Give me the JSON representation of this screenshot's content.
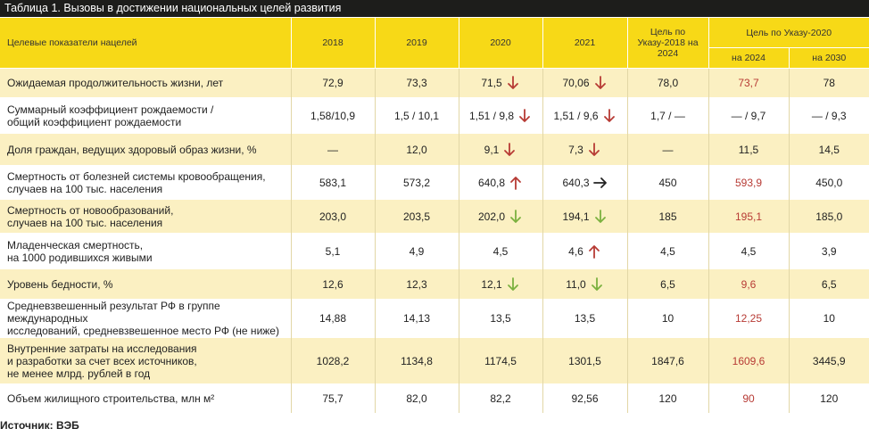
{
  "title": "Таблица 1. Вызовы в достижении национальных целей развития",
  "headers": {
    "indicators": "Целевые показатели нацелей",
    "y2018": "2018",
    "y2019": "2019",
    "y2020": "2020",
    "y2021": "2021",
    "target2018": "Цель по Указу-2018 на 2024",
    "target2020": "Цель по Указу-2020",
    "to2024": "на 2024",
    "to2030": "на 2030"
  },
  "arrow_colors": {
    "red": "#b73b35",
    "green": "#7bb13f",
    "black": "#222222"
  },
  "rows": [
    {
      "label": [
        "Ожидаемая продолжительность жизни, лет"
      ],
      "cells": [
        {
          "v": "72,9"
        },
        {
          "v": "73,3"
        },
        {
          "v": "71,5",
          "arrow": "down-red"
        },
        {
          "v": "70,06",
          "arrow": "down-red"
        },
        {
          "v": "78,0"
        },
        {
          "v": "73,7",
          "red": true
        },
        {
          "v": "78"
        }
      ]
    },
    {
      "label": [
        "Суммарный коэффициент рождаемости /",
        "общий коэффициент рождаемости"
      ],
      "cells": [
        {
          "v": "1,58/10,9"
        },
        {
          "v": "1,5 / 10,1"
        },
        {
          "v": "1,51 / 9,8",
          "arrow": "down-red"
        },
        {
          "v": "1,51 / 9,6",
          "arrow": "down-red"
        },
        {
          "v": "1,7 / —"
        },
        {
          "v": "— / 9,7"
        },
        {
          "v": "— / 9,3"
        }
      ]
    },
    {
      "label": [
        "Доля граждан, ведущих здоровый образ жизни, %"
      ],
      "cells": [
        {
          "v": "—"
        },
        {
          "v": "12,0"
        },
        {
          "v": "9,1",
          "arrow": "down-red"
        },
        {
          "v": "7,3",
          "arrow": "down-red"
        },
        {
          "v": "—"
        },
        {
          "v": "11,5"
        },
        {
          "v": "14,5"
        }
      ]
    },
    {
      "label": [
        "Смертность от болезней системы кровообращения,",
        "случаев на 100 тыс. населения"
      ],
      "cells": [
        {
          "v": "583,1"
        },
        {
          "v": "573,2"
        },
        {
          "v": "640,8",
          "arrow": "up-red"
        },
        {
          "v": "640,3",
          "arrow": "right-black"
        },
        {
          "v": "450"
        },
        {
          "v": "593,9",
          "red": true
        },
        {
          "v": "450,0"
        }
      ]
    },
    {
      "label": [
        "Смертность от новообразований,",
        "случаев на 100 тыс. населения"
      ],
      "cells": [
        {
          "v": "203,0"
        },
        {
          "v": "203,5"
        },
        {
          "v": "202,0",
          "arrow": "down-green"
        },
        {
          "v": "194,1",
          "arrow": "down-green"
        },
        {
          "v": "185"
        },
        {
          "v": "195,1",
          "red": true
        },
        {
          "v": "185,0"
        }
      ]
    },
    {
      "label": [
        "Младенческая смертность,",
        "на 1000 родившихся живыми"
      ],
      "cells": [
        {
          "v": "5,1"
        },
        {
          "v": "4,9"
        },
        {
          "v": "4,5"
        },
        {
          "v": "4,6",
          "arrow": "up-red"
        },
        {
          "v": "4,5"
        },
        {
          "v": "4,5"
        },
        {
          "v": "3,9"
        }
      ]
    },
    {
      "label": [
        "Уровень бедности, %"
      ],
      "cells": [
        {
          "v": "12,6"
        },
        {
          "v": "12,3"
        },
        {
          "v": "12,1",
          "arrow": "down-green"
        },
        {
          "v": "11,0",
          "arrow": "down-green"
        },
        {
          "v": "6,5"
        },
        {
          "v": "9,6",
          "red": true
        },
        {
          "v": "6,5"
        }
      ]
    },
    {
      "label": [
        "Средневзвешенный результат РФ в группе международных",
        "исследований, средневзвешенное место РФ (не ниже)"
      ],
      "cells": [
        {
          "v": "14,88"
        },
        {
          "v": "14,13"
        },
        {
          "v": "13,5"
        },
        {
          "v": "13,5"
        },
        {
          "v": "10"
        },
        {
          "v": "12,25",
          "red": true
        },
        {
          "v": "10"
        }
      ]
    },
    {
      "label": [
        "Внутренние затраты на исследования",
        "и разработки за счет всех источников,",
        "не менее млрд. рублей в год"
      ],
      "cells": [
        {
          "v": "1028,2"
        },
        {
          "v": "1134,8"
        },
        {
          "v": "1174,5"
        },
        {
          "v": "1301,5"
        },
        {
          "v": "1847,6"
        },
        {
          "v": "1609,6",
          "red": true
        },
        {
          "v": "3445,9"
        }
      ]
    },
    {
      "label": [
        "Объем жилищного строительства, млн м²"
      ],
      "cells": [
        {
          "v": "75,7"
        },
        {
          "v": "82,0"
        },
        {
          "v": "82,2"
        },
        {
          "v": "92,56"
        },
        {
          "v": "120"
        },
        {
          "v": "90",
          "red": true
        },
        {
          "v": "120"
        }
      ]
    }
  ],
  "source": "Источник: ВЭБ"
}
